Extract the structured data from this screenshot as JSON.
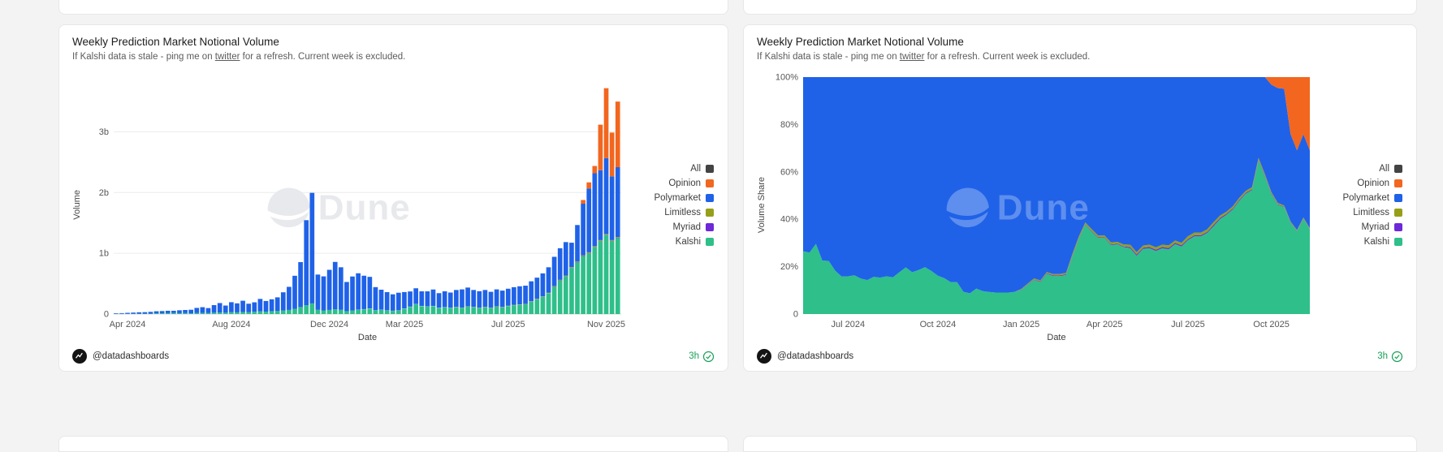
{
  "watermark": "Dune",
  "colors": {
    "page_background": "#f3f3f4",
    "card_background": "#ffffff",
    "freshness_green": "#18a058",
    "gridline": "#ececec"
  },
  "legend": [
    {
      "label": "All",
      "color": "#434343"
    },
    {
      "label": "Opinion",
      "color": "#f2661f"
    },
    {
      "label": "Polymarket",
      "color": "#1f62e8"
    },
    {
      "label": "Limitless",
      "color": "#95a018"
    },
    {
      "label": "Myriad",
      "color": "#6d28d9"
    },
    {
      "label": "Kalshi",
      "color": "#2fbf8a"
    }
  ],
  "cards": [
    {
      "title": "Weekly Prediction Market Notional Volume",
      "subtitle_prefix": "If Kalshi data is stale - ping me on ",
      "subtitle_link": "twitter",
      "subtitle_suffix": " for a refresh. Current week is excluded.",
      "footer": {
        "author": "@datadashboards",
        "updated": "3h"
      }
    },
    {
      "title": "Weekly Prediction Market Notional Volume",
      "subtitle_prefix": "If Kalshi data is stale - ping me on ",
      "subtitle_link": "twitter",
      "subtitle_suffix": " for a refresh. Current week is excluded.",
      "footer": {
        "author": "@datadashboards",
        "updated": "3h"
      }
    }
  ],
  "chart_data": [
    {
      "type": "bar",
      "stacked": true,
      "title": "Weekly Prediction Market Notional Volume",
      "xlabel": "Date",
      "ylabel": "Volume",
      "unit": "billions USD notional",
      "ylim": [
        0,
        3.9
      ],
      "yticks": [
        {
          "value": 0,
          "label": "0"
        },
        {
          "value": 1,
          "label": "1b"
        },
        {
          "value": 2,
          "label": "2b"
        },
        {
          "value": 3,
          "label": "3b"
        }
      ],
      "xticks": [
        {
          "date": "2024-04-01",
          "label": "Apr 2024"
        },
        {
          "date": "2024-08-05",
          "label": "Aug 2024"
        },
        {
          "date": "2024-12-02",
          "label": "Dec 2024"
        },
        {
          "date": "2025-03-03",
          "label": "Mar 2025"
        },
        {
          "date": "2025-07-07",
          "label": "Jul 2025"
        },
        {
          "date": "2025-11-03",
          "label": "Nov 2025"
        }
      ],
      "stack_order": [
        "kalshi",
        "myriad",
        "limitless",
        "polymarket",
        "opinion"
      ],
      "columns": [
        "week",
        "kalshi",
        "polymarket",
        "opinion",
        "limitless",
        "myriad"
      ],
      "rows": [
        [
          "2024-03-18",
          0.002,
          0.01,
          0,
          0,
          0
        ],
        [
          "2024-03-25",
          0.003,
          0.012,
          0,
          0,
          0
        ],
        [
          "2024-04-01",
          0.004,
          0.016,
          0,
          0,
          0
        ],
        [
          "2024-04-08",
          0.004,
          0.02,
          0,
          0,
          0
        ],
        [
          "2024-04-15",
          0.005,
          0.024,
          0,
          0,
          0
        ],
        [
          "2024-04-22",
          0.005,
          0.026,
          0,
          0,
          0
        ],
        [
          "2024-04-29",
          0.006,
          0.03,
          0,
          0,
          0
        ],
        [
          "2024-05-06",
          0.012,
          0.034,
          0,
          0,
          0
        ],
        [
          "2024-05-13",
          0.013,
          0.036,
          0,
          0,
          0
        ],
        [
          "2024-05-20",
          0.014,
          0.04,
          0,
          0,
          0
        ],
        [
          "2024-05-27",
          0.016,
          0.038,
          0,
          0,
          0
        ],
        [
          "2024-06-03",
          0.014,
          0.048,
          0,
          0,
          0
        ],
        [
          "2024-06-10",
          0.015,
          0.052,
          0,
          0,
          0
        ],
        [
          "2024-06-17",
          0.013,
          0.058,
          0,
          0,
          0
        ],
        [
          "2024-06-24",
          0.016,
          0.085,
          0,
          0,
          0
        ],
        [
          "2024-07-01",
          0.018,
          0.095,
          0,
          0,
          0
        ],
        [
          "2024-07-08",
          0.016,
          0.082,
          0,
          0,
          0
        ],
        [
          "2024-07-15",
          0.022,
          0.125,
          0,
          0,
          0
        ],
        [
          "2024-07-22",
          0.026,
          0.155,
          0,
          0,
          0
        ],
        [
          "2024-07-29",
          0.022,
          0.118,
          0,
          0,
          0
        ],
        [
          "2024-08-05",
          0.03,
          0.165,
          0,
          0,
          0
        ],
        [
          "2024-08-12",
          0.028,
          0.148,
          0,
          0,
          0
        ],
        [
          "2024-08-19",
          0.034,
          0.185,
          0,
          0,
          0
        ],
        [
          "2024-08-26",
          0.03,
          0.14,
          0,
          0,
          0
        ],
        [
          "2024-09-02",
          0.038,
          0.155,
          0,
          0,
          0
        ],
        [
          "2024-09-09",
          0.044,
          0.205,
          0,
          0,
          0
        ],
        [
          "2024-09-16",
          0.04,
          0.175,
          0,
          0,
          0
        ],
        [
          "2024-09-23",
          0.048,
          0.195,
          0,
          0,
          0
        ],
        [
          "2024-09-30",
          0.05,
          0.225,
          0,
          0,
          0
        ],
        [
          "2024-10-07",
          0.058,
          0.3,
          0,
          0,
          0
        ],
        [
          "2024-10-14",
          0.068,
          0.38,
          0,
          0,
          0
        ],
        [
          "2024-10-21",
          0.085,
          0.545,
          0,
          0,
          0
        ],
        [
          "2024-10-28",
          0.115,
          0.74,
          0,
          0,
          0
        ],
        [
          "2024-11-04",
          0.145,
          1.4,
          0,
          0,
          0
        ],
        [
          "2024-11-11",
          0.175,
          1.82,
          0,
          0,
          0
        ],
        [
          "2024-11-18",
          0.07,
          0.58,
          0,
          0,
          0
        ],
        [
          "2024-11-25",
          0.06,
          0.56,
          0,
          0,
          0
        ],
        [
          "2024-12-02",
          0.068,
          0.66,
          0,
          0,
          0
        ],
        [
          "2024-12-09",
          0.078,
          0.78,
          0,
          0,
          0
        ],
        [
          "2024-12-16",
          0.07,
          0.7,
          0,
          0,
          0
        ],
        [
          "2024-12-23",
          0.048,
          0.48,
          0,
          0,
          0
        ],
        [
          "2024-12-30",
          0.058,
          0.56,
          0,
          0,
          0
        ],
        [
          "2025-01-06",
          0.068,
          0.6,
          0,
          0.002,
          0.001
        ],
        [
          "2025-01-13",
          0.078,
          0.55,
          0,
          0.002,
          0.001
        ],
        [
          "2025-01-20",
          0.088,
          0.52,
          0,
          0.003,
          0.001
        ],
        [
          "2025-01-27",
          0.06,
          0.38,
          0,
          0.002,
          0.001
        ],
        [
          "2025-02-03",
          0.068,
          0.33,
          0,
          0.002,
          0.001
        ],
        [
          "2025-02-10",
          0.058,
          0.3,
          0,
          0.002,
          0.001
        ],
        [
          "2025-02-17",
          0.052,
          0.27,
          0,
          0.002,
          0.001
        ],
        [
          "2025-02-24",
          0.058,
          0.29,
          0,
          0.002,
          0.001
        ],
        [
          "2025-03-03",
          0.088,
          0.27,
          0,
          0.003,
          0.001
        ],
        [
          "2025-03-10",
          0.118,
          0.25,
          0,
          0.003,
          0.001
        ],
        [
          "2025-03-17",
          0.16,
          0.26,
          0,
          0.003,
          0.001
        ],
        [
          "2025-03-24",
          0.13,
          0.24,
          0,
          0.003,
          0.001
        ],
        [
          "2025-03-31",
          0.12,
          0.25,
          0,
          0.003,
          0.001
        ],
        [
          "2025-04-07",
          0.13,
          0.27,
          0,
          0.003,
          0.001
        ],
        [
          "2025-04-14",
          0.1,
          0.24,
          0,
          0.003,
          0.001
        ],
        [
          "2025-04-21",
          0.11,
          0.26,
          0,
          0.003,
          0.001
        ],
        [
          "2025-04-28",
          0.1,
          0.25,
          0,
          0.003,
          0.001
        ],
        [
          "2025-05-05",
          0.11,
          0.28,
          0,
          0.004,
          0.002
        ],
        [
          "2025-05-12",
          0.1,
          0.3,
          0,
          0.004,
          0.002
        ],
        [
          "2025-05-19",
          0.12,
          0.31,
          0,
          0.004,
          0.002
        ],
        [
          "2025-05-26",
          0.11,
          0.28,
          0,
          0.004,
          0.002
        ],
        [
          "2025-06-02",
          0.1,
          0.27,
          0,
          0.004,
          0.002
        ],
        [
          "2025-06-09",
          0.11,
          0.28,
          0,
          0.004,
          0.002
        ],
        [
          "2025-06-16",
          0.1,
          0.26,
          0,
          0.004,
          0.002
        ],
        [
          "2025-06-23",
          0.12,
          0.28,
          0,
          0.004,
          0.002
        ],
        [
          "2025-06-30",
          0.11,
          0.27,
          0,
          0.004,
          0.002
        ],
        [
          "2025-07-07",
          0.13,
          0.28,
          0,
          0.005,
          0.002
        ],
        [
          "2025-07-14",
          0.145,
          0.29,
          0,
          0.005,
          0.002
        ],
        [
          "2025-07-21",
          0.15,
          0.3,
          0,
          0.005,
          0.002
        ],
        [
          "2025-07-28",
          0.16,
          0.3,
          0,
          0.005,
          0.002
        ],
        [
          "2025-08-04",
          0.2,
          0.33,
          0,
          0.006,
          0.003
        ],
        [
          "2025-08-11",
          0.24,
          0.35,
          0,
          0.006,
          0.003
        ],
        [
          "2025-08-18",
          0.28,
          0.38,
          0,
          0.006,
          0.003
        ],
        [
          "2025-08-25",
          0.34,
          0.42,
          0,
          0.007,
          0.003
        ],
        [
          "2025-09-01",
          0.45,
          0.48,
          0,
          0.008,
          0.004
        ],
        [
          "2025-09-08",
          0.55,
          0.52,
          0,
          0.009,
          0.004
        ],
        [
          "2025-09-15",
          0.62,
          0.55,
          0,
          0.01,
          0.004
        ],
        [
          "2025-09-22",
          0.76,
          0.4,
          0,
          0.01,
          0.004
        ],
        [
          "2025-09-29",
          0.85,
          0.6,
          0,
          0.01,
          0.005
        ],
        [
          "2025-10-06",
          0.95,
          0.85,
          0.06,
          0.012,
          0.005
        ],
        [
          "2025-10-13",
          1.0,
          1.05,
          0.1,
          0.012,
          0.005
        ],
        [
          "2025-10-20",
          1.1,
          1.2,
          0.12,
          0.012,
          0.005
        ],
        [
          "2025-10-27",
          1.2,
          1.15,
          0.75,
          0.012,
          0.005
        ],
        [
          "2025-11-03",
          1.3,
          1.25,
          1.15,
          0.012,
          0.005
        ],
        [
          "2025-11-10",
          1.2,
          1.05,
          0.72,
          0.012,
          0.005
        ],
        [
          "2025-11-17",
          1.25,
          1.15,
          1.08,
          0.012,
          0.005
        ]
      ]
    },
    {
      "type": "area",
      "stacked_percent": true,
      "title": "Weekly Prediction Market Notional Volume",
      "xlabel": "Date",
      "ylabel": "Volume Share",
      "ylim": [
        0,
        100
      ],
      "yticks": [
        {
          "value": 0,
          "label": "0"
        },
        {
          "value": 20,
          "label": "20%"
        },
        {
          "value": 40,
          "label": "40%"
        },
        {
          "value": 60,
          "label": "60%"
        },
        {
          "value": 80,
          "label": "80%"
        },
        {
          "value": 100,
          "label": "100%"
        }
      ],
      "xticks": [
        {
          "date": "2024-07-01",
          "label": "Jul 2024"
        },
        {
          "date": "2024-10-07",
          "label": "Oct 2024"
        },
        {
          "date": "2025-01-06",
          "label": "Jan 2025"
        },
        {
          "date": "2025-04-07",
          "label": "Apr 2025"
        },
        {
          "date": "2025-07-07",
          "label": "Jul 2025"
        },
        {
          "date": "2025-10-06",
          "label": "Oct 2025"
        }
      ],
      "x_start": "2024-05-13",
      "series_from": 0,
      "note": "100% stacked weekly share of each platform's volume, derived from chart_data[0].rows"
    }
  ]
}
